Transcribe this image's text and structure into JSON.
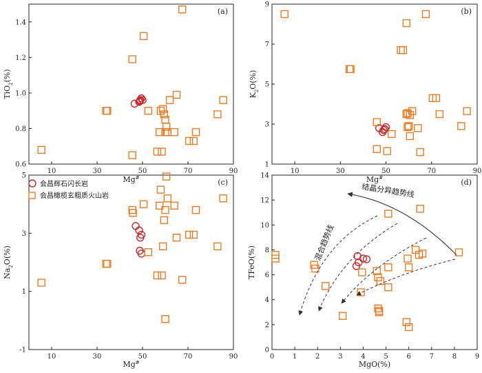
{
  "colors": {
    "orange": "#ee7a1e",
    "red": "#c62828",
    "axis": "#222222",
    "arrow": "#333333"
  },
  "legend": {
    "items": [
      {
        "label": "会昌辉石闪长岩",
        "marker": "circle",
        "color": "#c62828"
      },
      {
        "label": "会昌橄榄玄粗质火山岩",
        "marker": "square",
        "color": "#ee7a1e"
      }
    ]
  },
  "annotations": {
    "crystal": "结晶分异趋势线",
    "mixing": "混合趋势线"
  },
  "chart_data": [
    {
      "panel": "(a)",
      "type": "scatter",
      "xlabel": "Mg#",
      "ylabel": "TiO2(%)",
      "xlim": [
        0,
        90
      ],
      "ylim": [
        0.6,
        1.5
      ],
      "xticks": [
        10,
        30,
        50,
        70,
        90
      ],
      "yticks": [
        0.6,
        0.8,
        1.0,
        1.2,
        1.4
      ],
      "series": [
        {
          "name": "会昌辉石闪长岩",
          "marker": "circle",
          "x": [
            46.5,
            48.5,
            49,
            49.5,
            50,
            48.8
          ],
          "y": [
            0.94,
            0.95,
            0.96,
            0.97,
            0.96,
            0.955
          ]
        },
        {
          "name": "会昌橄榄玄粗质火山岩",
          "marker": "square",
          "x": [
            5.5,
            34,
            34.5,
            45.5,
            45.5,
            50.5,
            52.5,
            56.5,
            57.5,
            58,
            58.5,
            59,
            59.5,
            60,
            60,
            60.5,
            61,
            62,
            64,
            65,
            67.5,
            70.5,
            72.5,
            73.5,
            83,
            85.5
          ],
          "y": [
            0.68,
            0.9,
            0.9,
            1.19,
            0.65,
            1.32,
            0.9,
            0.67,
            0.78,
            0.9,
            0.67,
            0.91,
            0.88,
            0.85,
            0.78,
            0.81,
            0.78,
            0.96,
            0.78,
            0.99,
            1.47,
            0.73,
            0.73,
            0.78,
            0.88,
            0.96
          ]
        }
      ]
    },
    {
      "panel": "(b)",
      "type": "scatter",
      "xlabel": "Mg#",
      "ylabel": "K2O(%)",
      "xlim": [
        0,
        90
      ],
      "ylim": [
        1,
        9
      ],
      "xticks": [
        10,
        30,
        50,
        70,
        90
      ],
      "yticks": [
        1,
        3,
        5,
        7,
        9
      ],
      "series": [
        {
          "name": "会昌辉石闪长岩",
          "marker": "circle",
          "x": [
            47,
            48.5,
            49,
            49.5,
            50
          ],
          "y": [
            2.8,
            2.6,
            2.7,
            2.75,
            2.85
          ]
        },
        {
          "name": "会昌橄榄玄粗质火山岩",
          "marker": "square",
          "x": [
            5.5,
            34,
            34.5,
            46,
            46,
            50.5,
            52.5,
            56.5,
            57.5,
            59,
            59,
            59.5,
            59.5,
            60,
            60.5,
            60.5,
            61.5,
            64,
            65,
            67.5,
            70.5,
            72,
            73.5,
            83,
            85.5
          ],
          "y": [
            8.5,
            5.75,
            5.75,
            3.1,
            1.75,
            1.65,
            2.5,
            6.7,
            6.7,
            8.05,
            3.5,
            3.55,
            2.85,
            2.9,
            3.45,
            2.4,
            3.65,
            2.8,
            1.6,
            8.5,
            4.3,
            4.3,
            3.5,
            2.9,
            3.65
          ]
        }
      ]
    },
    {
      "panel": "(c)",
      "type": "scatter",
      "xlabel": "Mg#",
      "ylabel": "Na2O(%)",
      "xlim": [
        0,
        90
      ],
      "ylim": [
        -1,
        5
      ],
      "xticks": [
        10,
        30,
        50,
        70,
        90
      ],
      "yticks": [
        -1,
        1,
        3,
        5
      ],
      "series": [
        {
          "name": "会昌辉石闪长岩",
          "marker": "circle",
          "x": [
            47,
            48.5,
            49.5,
            49,
            48.8,
            49.5
          ],
          "y": [
            3.25,
            3.1,
            2.95,
            2.85,
            2.4,
            2.3
          ]
        },
        {
          "name": "会昌橄榄玄粗质火山岩",
          "marker": "square",
          "x": [
            5.5,
            34,
            34.5,
            45.5,
            45.8,
            50.5,
            52.5,
            56.5,
            57.5,
            58,
            58.5,
            59,
            59.5,
            60,
            60,
            60.5,
            61,
            64,
            65,
            67.5,
            70.5,
            72.5,
            73.5,
            83,
            85.5
          ],
          "y": [
            1.3,
            1.95,
            1.95,
            3.8,
            3.7,
            4.0,
            2.35,
            1.55,
            3.95,
            4.5,
            1.55,
            2.55,
            3.45,
            0.05,
            3.8,
            4.95,
            4.2,
            3.95,
            2.85,
            1.4,
            2.95,
            2.95,
            3.8,
            2.55,
            4.2
          ]
        }
      ]
    },
    {
      "panel": "(d)",
      "type": "scatter",
      "xlabel": "MgO(%)",
      "ylabel": "TFeO(%)",
      "xlim": [
        0,
        9
      ],
      "ylim": [
        0,
        14
      ],
      "xticks": [
        0,
        1,
        2,
        3,
        4,
        5,
        6,
        7,
        8,
        9
      ],
      "yticks": [
        0,
        2,
        4,
        6,
        8,
        10,
        12,
        14
      ],
      "series": [
        {
          "name": "会昌辉石闪长岩",
          "marker": "circle",
          "x": [
            3.7,
            3.8,
            3.75,
            4.0,
            4.15
          ],
          "y": [
            6.7,
            7.0,
            7.5,
            7.3,
            7.25
          ]
        },
        {
          "name": "会昌橄榄玄粗质火山岩",
          "marker": "square",
          "x": [
            0.15,
            0.15,
            1.85,
            1.9,
            2.35,
            3.1,
            3.9,
            3.95,
            4.6,
            4.65,
            4.65,
            4.7,
            4.7,
            4.75,
            5.1,
            5.1,
            5.1,
            5.9,
            5.95,
            6.0,
            6.0,
            6.3,
            6.45,
            6.5,
            6.6,
            8.2
          ],
          "y": [
            7.6,
            7.3,
            6.8,
            6.5,
            5.1,
            2.7,
            4.6,
            6.2,
            6.3,
            5.8,
            3.3,
            3.0,
            3.1,
            5.5,
            6.6,
            5.0,
            10.9,
            2.2,
            7.3,
            1.8,
            6.6,
            8.0,
            7.6,
            11.3,
            7.7,
            7.8
          ]
        }
      ]
    }
  ]
}
